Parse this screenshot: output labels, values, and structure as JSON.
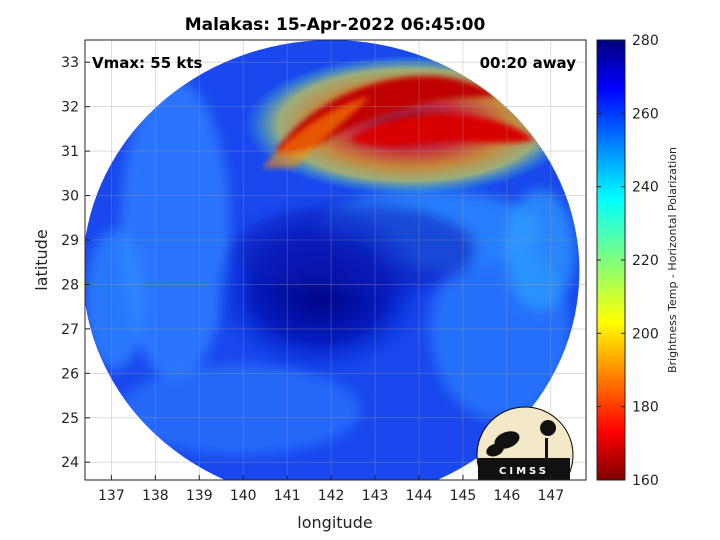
{
  "chart_data": {
    "type": "heatmap",
    "title": "Malakas: 15-Apr-2022 06:45:00",
    "annotations": {
      "left": "Vmax: 55 kts",
      "right": "00:20 away"
    },
    "xlabel": "longitude",
    "ylabel": "latitude",
    "xlim": [
      136.4,
      147.8
    ],
    "ylim": [
      23.6,
      33.5
    ],
    "x_ticks": [
      137,
      138,
      139,
      140,
      141,
      142,
      143,
      144,
      145,
      146,
      147
    ],
    "y_ticks": [
      24,
      25,
      26,
      27,
      28,
      29,
      30,
      31,
      32,
      33
    ],
    "grid": true,
    "colorbar": {
      "label": "Brightness Temp - Horizontal Polarization",
      "range": [
        160,
        280
      ],
      "ticks": [
        160,
        180,
        200,
        220,
        240,
        260,
        280
      ],
      "colormap": "jet"
    },
    "swath": {
      "center_lon": 142.0,
      "center_lat": 28.3,
      "radius_lon": 5.65,
      "radius_lat": 5.2,
      "background_value": 262
    },
    "features": [
      {
        "name": "cold band",
        "lon": [
          141.2,
          145.2
        ],
        "lat": [
          30.7,
          32.8
        ],
        "min_value": 170
      },
      {
        "name": "storm core",
        "lon": 142.3,
        "lat": 27.8,
        "value": 278
      }
    ]
  },
  "logo": {
    "text": "CIMSS"
  }
}
